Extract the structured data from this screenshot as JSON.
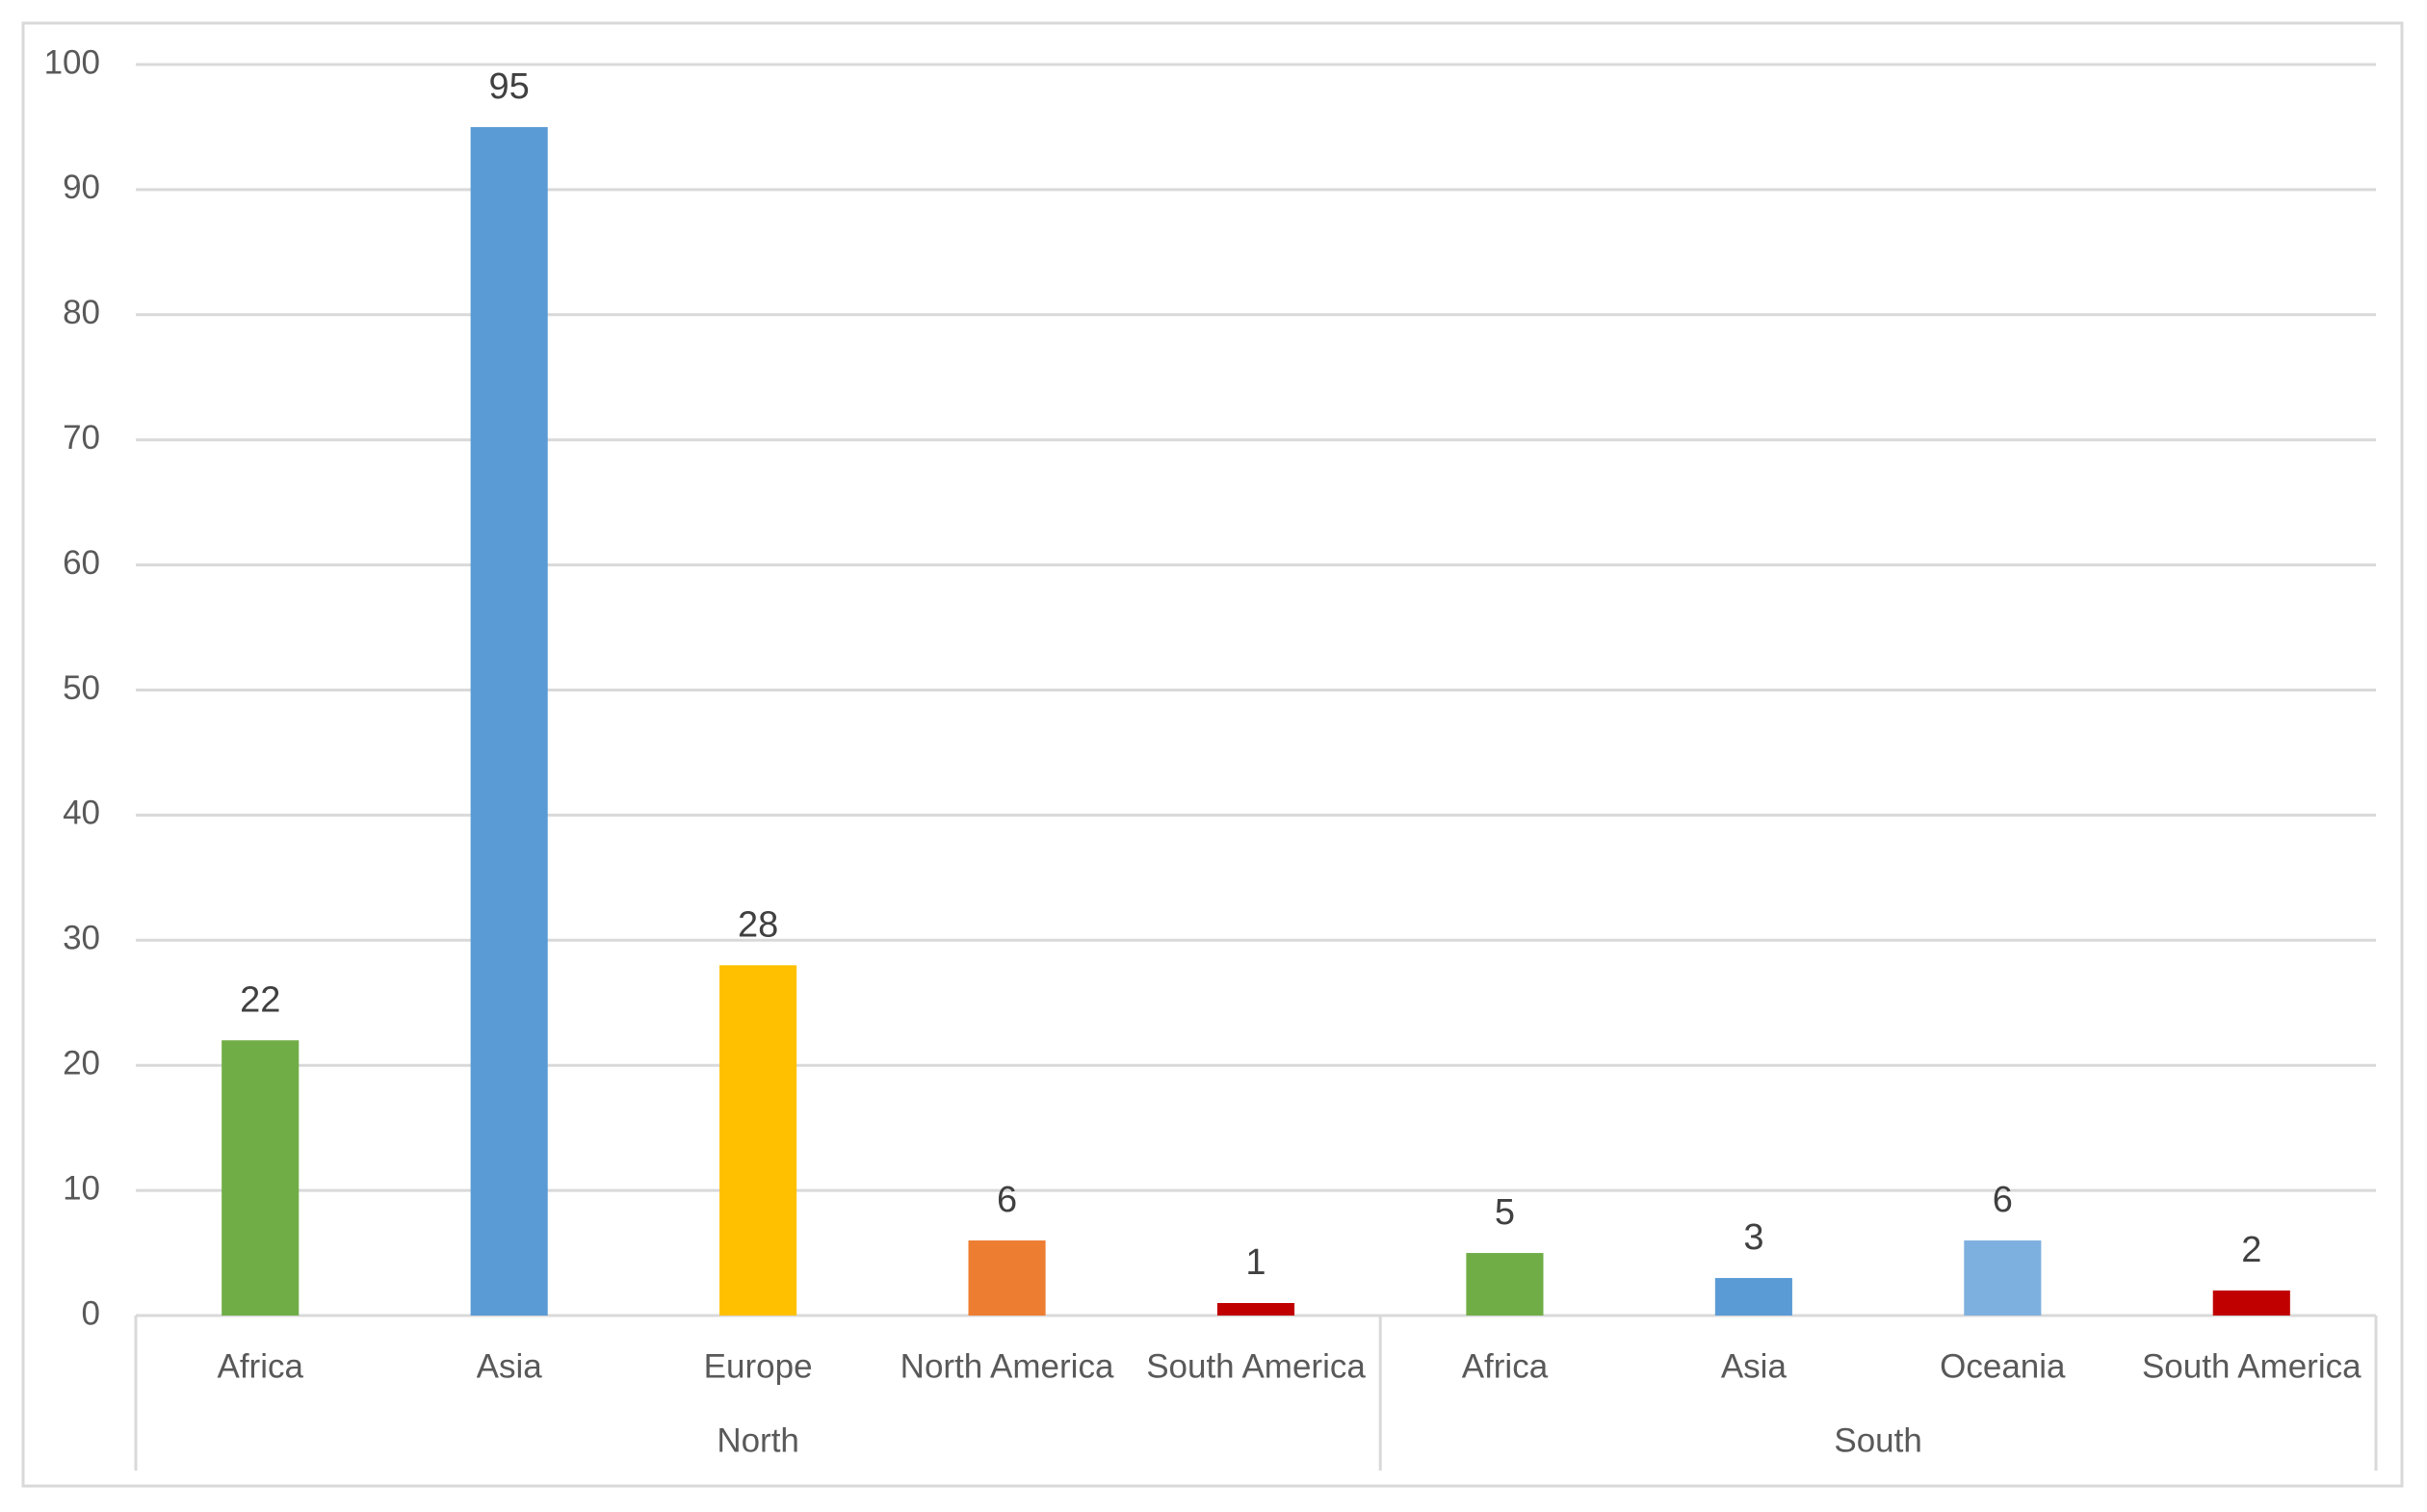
{
  "chart_data": {
    "type": "bar",
    "groups": [
      {
        "name": "North",
        "categories": [
          "Africa",
          "Asia",
          "Europe",
          "North America",
          "South America"
        ],
        "values": [
          22,
          95,
          28,
          6,
          1
        ],
        "colors": [
          "#70ad47",
          "#5b9bd5",
          "#ffc000",
          "#ed7d31",
          "#c00000"
        ]
      },
      {
        "name": "South",
        "categories": [
          "Africa",
          "Asia",
          "Oceania",
          "South America"
        ],
        "values": [
          5,
          3,
          6,
          2
        ],
        "colors": [
          "#70ad47",
          "#5b9bd5",
          "#7eb0df",
          "#c00000"
        ]
      }
    ],
    "ylim": [
      0,
      100
    ],
    "yticks": [
      0,
      10,
      20,
      30,
      40,
      50,
      60,
      70,
      80,
      90,
      100
    ],
    "grid": true
  }
}
